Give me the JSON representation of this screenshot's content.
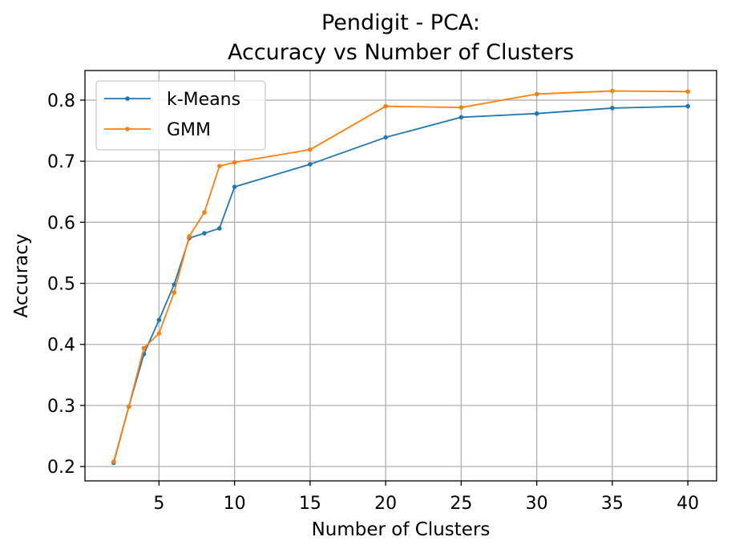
{
  "chart_data": {
    "type": "line",
    "title": [
      "Pendigit - PCA:",
      "Accuracy vs Number of Clusters"
    ],
    "xlabel": "Number of Clusters",
    "ylabel": "Accuracy",
    "xlim": [
      0.1,
      41.9
    ],
    "ylim": [
      0.1765,
      0.8485
    ],
    "xticks": [
      5,
      10,
      15,
      20,
      25,
      30,
      35,
      40
    ],
    "yticks": [
      0.2,
      0.3,
      0.4,
      0.5,
      0.6,
      0.7,
      0.8
    ],
    "grid": true,
    "legend": "top-left",
    "x": [
      2,
      3,
      4,
      5,
      6,
      7,
      8,
      9,
      10,
      15,
      20,
      25,
      30,
      35,
      40
    ],
    "series": [
      {
        "name": "k-Means",
        "color": "#1f77b4",
        "values": [
          0.206,
          0.298,
          0.384,
          0.44,
          0.498,
          0.574,
          0.582,
          0.59,
          0.658,
          0.695,
          0.739,
          0.772,
          0.778,
          0.787,
          0.79
        ]
      },
      {
        "name": "GMM",
        "color": "#ff7f0e",
        "values": [
          0.208,
          0.298,
          0.394,
          0.418,
          0.485,
          0.577,
          0.616,
          0.692,
          0.698,
          0.719,
          0.79,
          0.788,
          0.81,
          0.815,
          0.814
        ]
      }
    ]
  }
}
